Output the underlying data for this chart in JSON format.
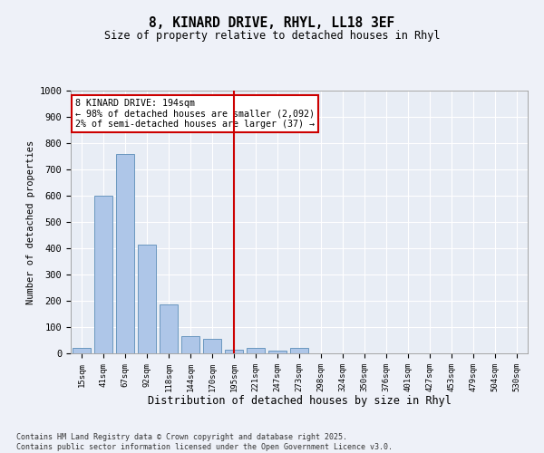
{
  "title1": "8, KINARD DRIVE, RHYL, LL18 3EF",
  "title2": "Size of property relative to detached houses in Rhyl",
  "xlabel": "Distribution of detached houses by size in Rhyl",
  "ylabel": "Number of detached properties",
  "bar_color": "#aec6e8",
  "bar_edge_color": "#5b8db8",
  "background_color": "#e8edf5",
  "grid_color": "#ffffff",
  "fig_bg_color": "#eef1f8",
  "vline_color": "#cc0000",
  "annotation_text": "8 KINARD DRIVE: 194sqm\n← 98% of detached houses are smaller (2,092)\n2% of semi-detached houses are larger (37) →",
  "categories": [
    "15sqm",
    "41sqm",
    "67sqm",
    "92sqm",
    "118sqm",
    "144sqm",
    "170sqm",
    "195sqm",
    "221sqm",
    "247sqm",
    "273sqm",
    "298sqm",
    "324sqm",
    "350sqm",
    "376sqm",
    "401sqm",
    "427sqm",
    "453sqm",
    "479sqm",
    "504sqm",
    "530sqm"
  ],
  "values": [
    22,
    600,
    760,
    415,
    185,
    65,
    55,
    15,
    20,
    10,
    22,
    0,
    0,
    0,
    0,
    0,
    0,
    0,
    0,
    0,
    0
  ],
  "ylim": [
    0,
    1000
  ],
  "yticks": [
    0,
    100,
    200,
    300,
    400,
    500,
    600,
    700,
    800,
    900,
    1000
  ],
  "vline_index": 7,
  "footnote": "Contains HM Land Registry data © Crown copyright and database right 2025.\nContains public sector information licensed under the Open Government Licence v3.0."
}
